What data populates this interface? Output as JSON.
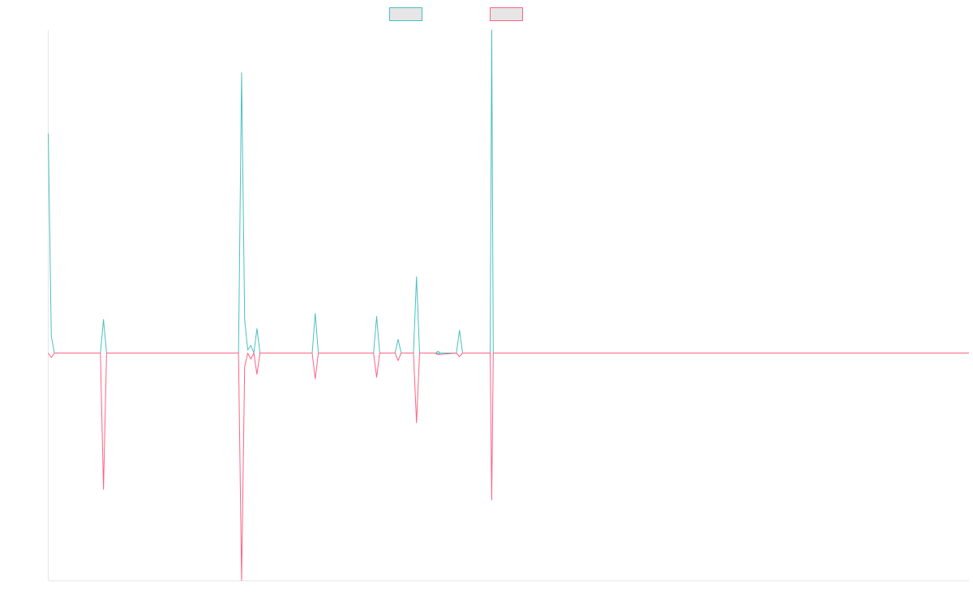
{
  "chart_data": {
    "type": "line",
    "title": "",
    "xlabel": "",
    "ylabel": "",
    "legend_placement": "top",
    "grid": false,
    "xlim": [
      0,
      300
    ],
    "ylim": [
      -1,
      1
    ],
    "series": [
      {
        "color": "#4bc0c0",
        "legend_fill": "#e6e6e6",
        "points": [
          [
            0,
            0.72
          ],
          [
            1,
            0.055
          ],
          [
            2,
            0.0
          ],
          [
            17,
            0.0
          ],
          [
            18,
            0.11
          ],
          [
            19,
            0.0
          ],
          [
            62,
            0.0
          ],
          [
            63,
            0.92
          ],
          [
            64,
            0.11
          ],
          [
            65,
            0.01
          ],
          [
            66,
            0.025
          ],
          [
            67,
            0.0
          ],
          [
            68,
            0.08
          ],
          [
            69,
            0.0
          ],
          [
            86,
            0.0
          ],
          [
            87,
            0.13
          ],
          [
            88,
            0.0
          ],
          [
            106,
            0.0
          ],
          [
            107,
            0.12
          ],
          [
            108,
            0.0
          ],
          [
            113,
            0.0
          ],
          [
            114,
            0.045
          ],
          [
            115,
            0.0
          ],
          [
            119,
            0.0
          ],
          [
            120,
            0.25
          ],
          [
            121,
            0.0
          ],
          [
            126,
            0.0
          ],
          [
            127,
            0.0
          ],
          [
            133,
            0.0
          ],
          [
            134,
            0.075
          ],
          [
            135,
            0.0
          ],
          [
            144,
            0.0
          ],
          [
            144.5,
            1.06
          ],
          [
            145,
            0.0
          ],
          [
            154,
            0.0
          ],
          [
            300,
            0.0
          ]
        ]
      },
      {
        "color": "#ff6384",
        "legend_fill": "#e6e6e6",
        "points": [
          [
            0,
            0.0
          ],
          [
            1,
            -0.015
          ],
          [
            2,
            0.0
          ],
          [
            17,
            0.0
          ],
          [
            18,
            -0.45
          ],
          [
            19,
            0.0
          ],
          [
            62,
            0.0
          ],
          [
            63,
            -0.75
          ],
          [
            64,
            -0.045
          ],
          [
            65,
            0.0
          ],
          [
            66,
            -0.02
          ],
          [
            67,
            0.0
          ],
          [
            68,
            -0.07
          ],
          [
            69,
            0.0
          ],
          [
            86,
            0.0
          ],
          [
            87,
            -0.085
          ],
          [
            88,
            0.0
          ],
          [
            106,
            0.0
          ],
          [
            107,
            -0.08
          ],
          [
            108,
            0.0
          ],
          [
            113,
            0.0
          ],
          [
            114,
            -0.025
          ],
          [
            115,
            0.0
          ],
          [
            119,
            0.0
          ],
          [
            120,
            -0.23
          ],
          [
            121,
            0.0
          ],
          [
            126,
            0.0
          ],
          [
            127,
            -0.005
          ],
          [
            133,
            0.0
          ],
          [
            134,
            -0.012
          ],
          [
            135,
            0.0
          ],
          [
            144,
            0.0
          ],
          [
            144.5,
            -0.485
          ],
          [
            145,
            0.0
          ],
          [
            154,
            0.0
          ],
          [
            300,
            0.0
          ]
        ]
      }
    ]
  }
}
